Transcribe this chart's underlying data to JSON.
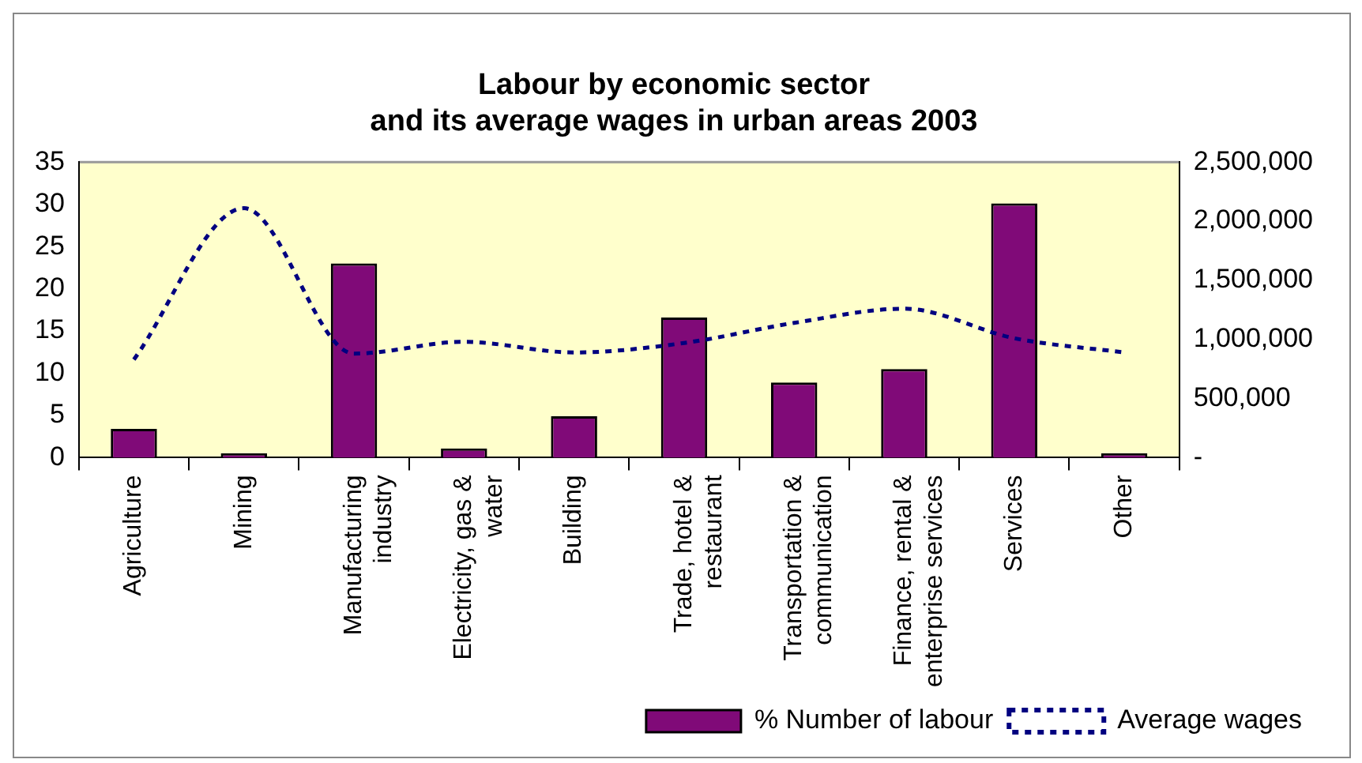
{
  "chart_data": {
    "type": "bar",
    "title": "Labour by economic sector\nand its average wages in urban areas 2003",
    "categories": [
      "Agriculture",
      "Mining",
      "Manufacturing industry",
      "Electricity, gas & water",
      "Building",
      "Trade, hotel & restaurant",
      "Transportation & communication",
      "Finance, rental & enterprise services",
      "Services",
      "Other"
    ],
    "series": [
      {
        "name": "% Number of labour",
        "color": "#800a78",
        "values": [
          3.4,
          0.5,
          23,
          1.1,
          4.9,
          16.6,
          8.9,
          10.5,
          30.1,
          0.5
        ]
      },
      {
        "name": "Average wages",
        "type": "line",
        "axis": "y2",
        "color": "#000080",
        "line_style": "dashed",
        "marker": "none",
        "values": [
          830000,
          2110000,
          880000,
          980000,
          890000,
          970000,
          1140000,
          1260000,
          1010000,
          890000
        ]
      }
    ],
    "ylim": [
      0,
      35
    ],
    "yticks": [
      0,
      5,
      10,
      15,
      20,
      25,
      30,
      35
    ],
    "y2lim": [
      0,
      2500000
    ],
    "y2ticks": [
      {
        "value": 0,
        "label": "-"
      },
      {
        "value": 500000,
        "label": "500,000"
      },
      {
        "value": 1000000,
        "label": "1,000,000"
      },
      {
        "value": 1500000,
        "label": "1,500,000"
      },
      {
        "value": 2000000,
        "label": "2,000,000"
      },
      {
        "value": 2500000,
        "label": "2,500,000"
      }
    ],
    "grid": false,
    "legend": "bottom right"
  }
}
